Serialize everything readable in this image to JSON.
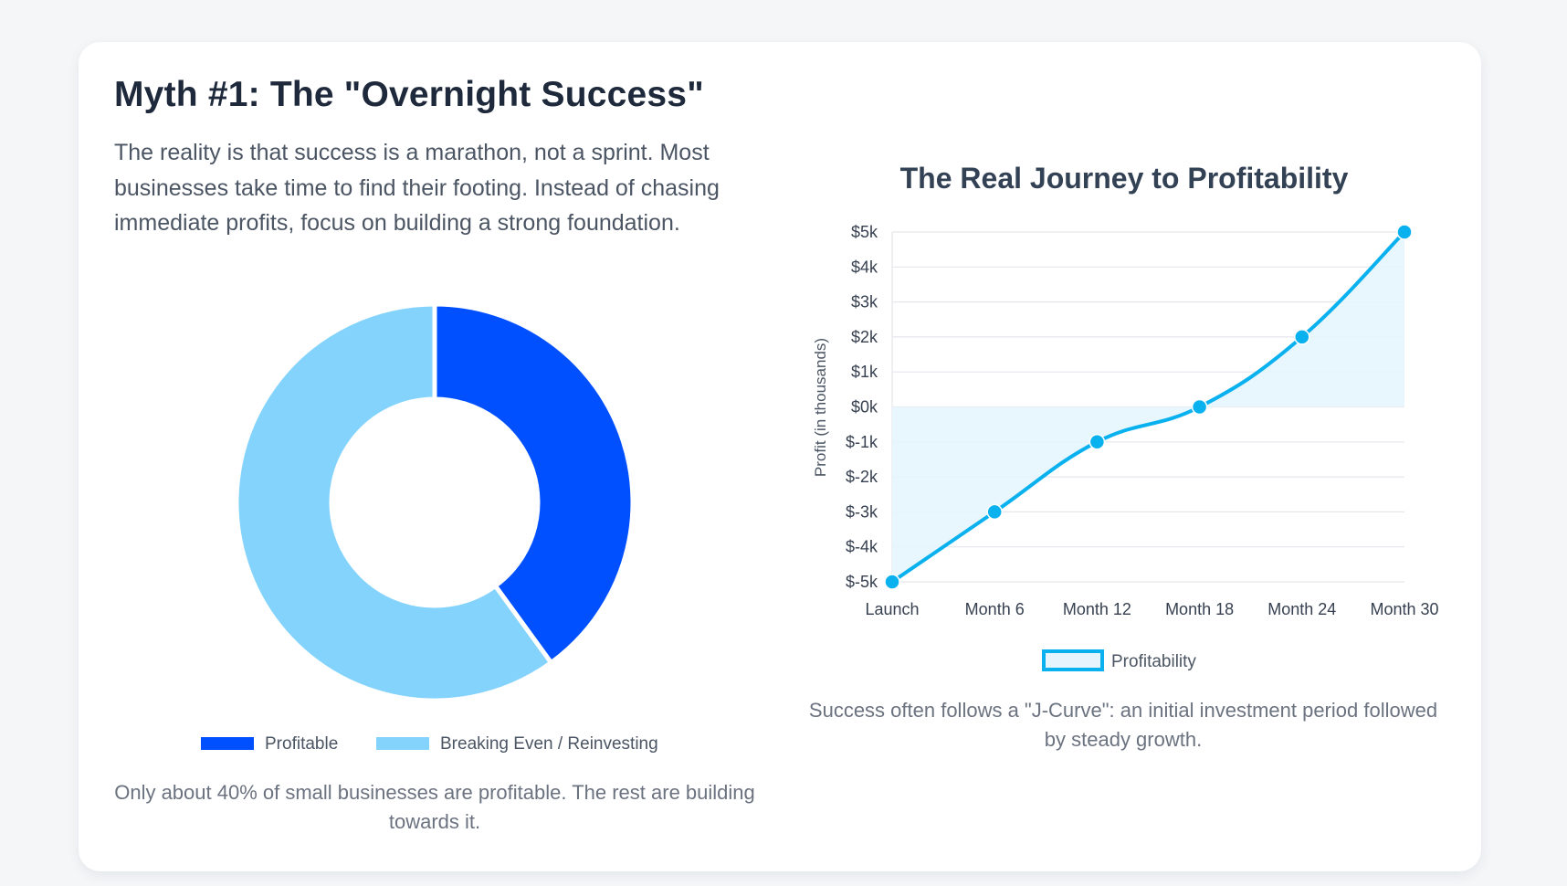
{
  "myth": {
    "title": "Myth #1: The \"Overnight Success\"",
    "intro": "The reality is that success is a marathon, not a sprint. Most businesses take time to find their footing. Instead of chasing immediate profits, focus on building a strong foundation."
  },
  "donut": {
    "caption": "Only about 40% of small businesses are profitable. The rest are building towards it."
  },
  "line": {
    "caption": "Success often follows a \"J-Curve\": an initial investment period followed by steady growth."
  },
  "colors": {
    "profitable": "#0050ff",
    "reinvesting": "#83d3fd",
    "line": "#0ab1ef",
    "fill": "#e6f5fd",
    "grid": "#e5e7eb"
  },
  "chart_data": [
    {
      "type": "pie",
      "variant": "doughnut",
      "labels": [
        "Profitable",
        "Breaking Even / Reinvesting"
      ],
      "values": [
        40,
        60
      ],
      "legend": "bottom"
    },
    {
      "type": "line",
      "title": "The Real Journey to Profitability",
      "categories": [
        "Launch",
        "Month 6",
        "Month 12",
        "Month 18",
        "Month 24",
        "Month 30"
      ],
      "series": [
        {
          "name": "Profitability",
          "values": [
            -5,
            -3,
            -1,
            0,
            2,
            5
          ]
        }
      ],
      "ylabel": "Profit (in thousands)",
      "ylim": [
        -5,
        5
      ],
      "ytick_step": 1,
      "y_tick_prefix": "$",
      "y_tick_suffix": "k",
      "fill": "origin",
      "grid": true,
      "legend": "bottom"
    }
  ]
}
